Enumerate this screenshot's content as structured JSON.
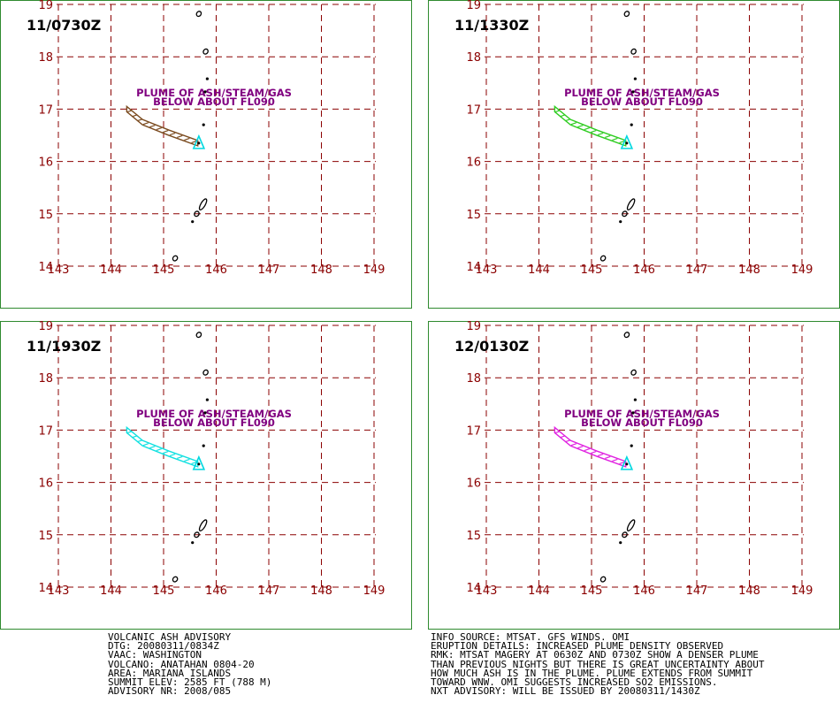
{
  "colors": {
    "frame": "#2f8a2f",
    "grid": "#8b0000",
    "lat_lon_labels": "#8b0000",
    "plume_label": "#800080",
    "volcano_marker": "#00d8e0",
    "land": "#000000"
  },
  "plume_label": [
    "PLUME OF ASH/STEAM/GAS",
    "BELOW ABOUT FL090"
  ],
  "lat_labels": [
    "19",
    "18",
    "17",
    "16",
    "15",
    "14"
  ],
  "lon_labels": [
    "143",
    "144",
    "145",
    "146",
    "147",
    "148",
    "149"
  ],
  "panels": [
    {
      "time": "11/0730Z",
      "plume_color": "#7a4a1e",
      "plume_color_name": "brown"
    },
    {
      "time": "11/1330Z",
      "plume_color": "#2ecc20",
      "plume_color_name": "green"
    },
    {
      "time": "11/1930Z",
      "plume_color": "#10e0e0",
      "plume_color_name": "cyan"
    },
    {
      "time": "12/0130Z",
      "plume_color": "#e020e0",
      "plume_color_name": "magenta"
    }
  ],
  "plume_path": [
    {
      "lon": 144.3,
      "lat": 17.0
    },
    {
      "lon": 144.6,
      "lat": 16.75
    },
    {
      "lon": 145.1,
      "lat": 16.55
    },
    {
      "lon": 145.65,
      "lat": 16.35
    }
  ],
  "volcano": {
    "name": "ANATAHAN",
    "lon": 145.67,
    "lat": 16.35
  },
  "islands": [
    {
      "lon": 145.67,
      "lat": 18.82,
      "kind": "small"
    },
    {
      "lon": 145.8,
      "lat": 18.1,
      "kind": "small"
    },
    {
      "lon": 145.83,
      "lat": 17.58,
      "kind": "dot"
    },
    {
      "lon": 145.79,
      "lat": 17.33,
      "kind": "dot"
    },
    {
      "lon": 145.76,
      "lat": 16.7,
      "kind": "dot"
    },
    {
      "lon": 145.75,
      "lat": 15.18,
      "kind": "long"
    },
    {
      "lon": 145.63,
      "lat": 15.0,
      "kind": "small"
    },
    {
      "lon": 145.55,
      "lat": 14.85,
      "kind": "dot"
    },
    {
      "lon": 145.22,
      "lat": 14.15,
      "kind": "small"
    }
  ],
  "advisory_left": [
    "VOLCANIC ASH ADVISORY",
    "DTG: 20080311/0834Z",
    "VAAC: WASHINGTON",
    "VOLCANO: ANATAHAN 0804-20",
    "AREA: MARIANA ISLANDS",
    "SUMMIT ELEV: 2585 FT (788 M)",
    "ADVISORY NR: 2008/085"
  ],
  "advisory_right": [
    "INFO SOURCE: MTSAT. GFS WINDS. OMI",
    "ERUPTION DETAILS: INCREASED PLUME DENSITY OBSERVED",
    "RMK: MTSAT MAGERY AT 0630Z AND 0730Z SHOW A DENSER PLUME",
    "THAN PREVIOUS NIGHTS BUT THERE IS GREAT UNCERTAINTY ABOUT",
    "HOW MUCH ASH IS IN THE PLUME. PLUME EXTENDS FROM SUMMIT",
    "TOWARD WNW. OMI SUGGESTS INCREASED SO2 EMISSIONS.",
    "NXT ADVISORY: WILL BE ISSUED BY 20080311/1430Z"
  ]
}
